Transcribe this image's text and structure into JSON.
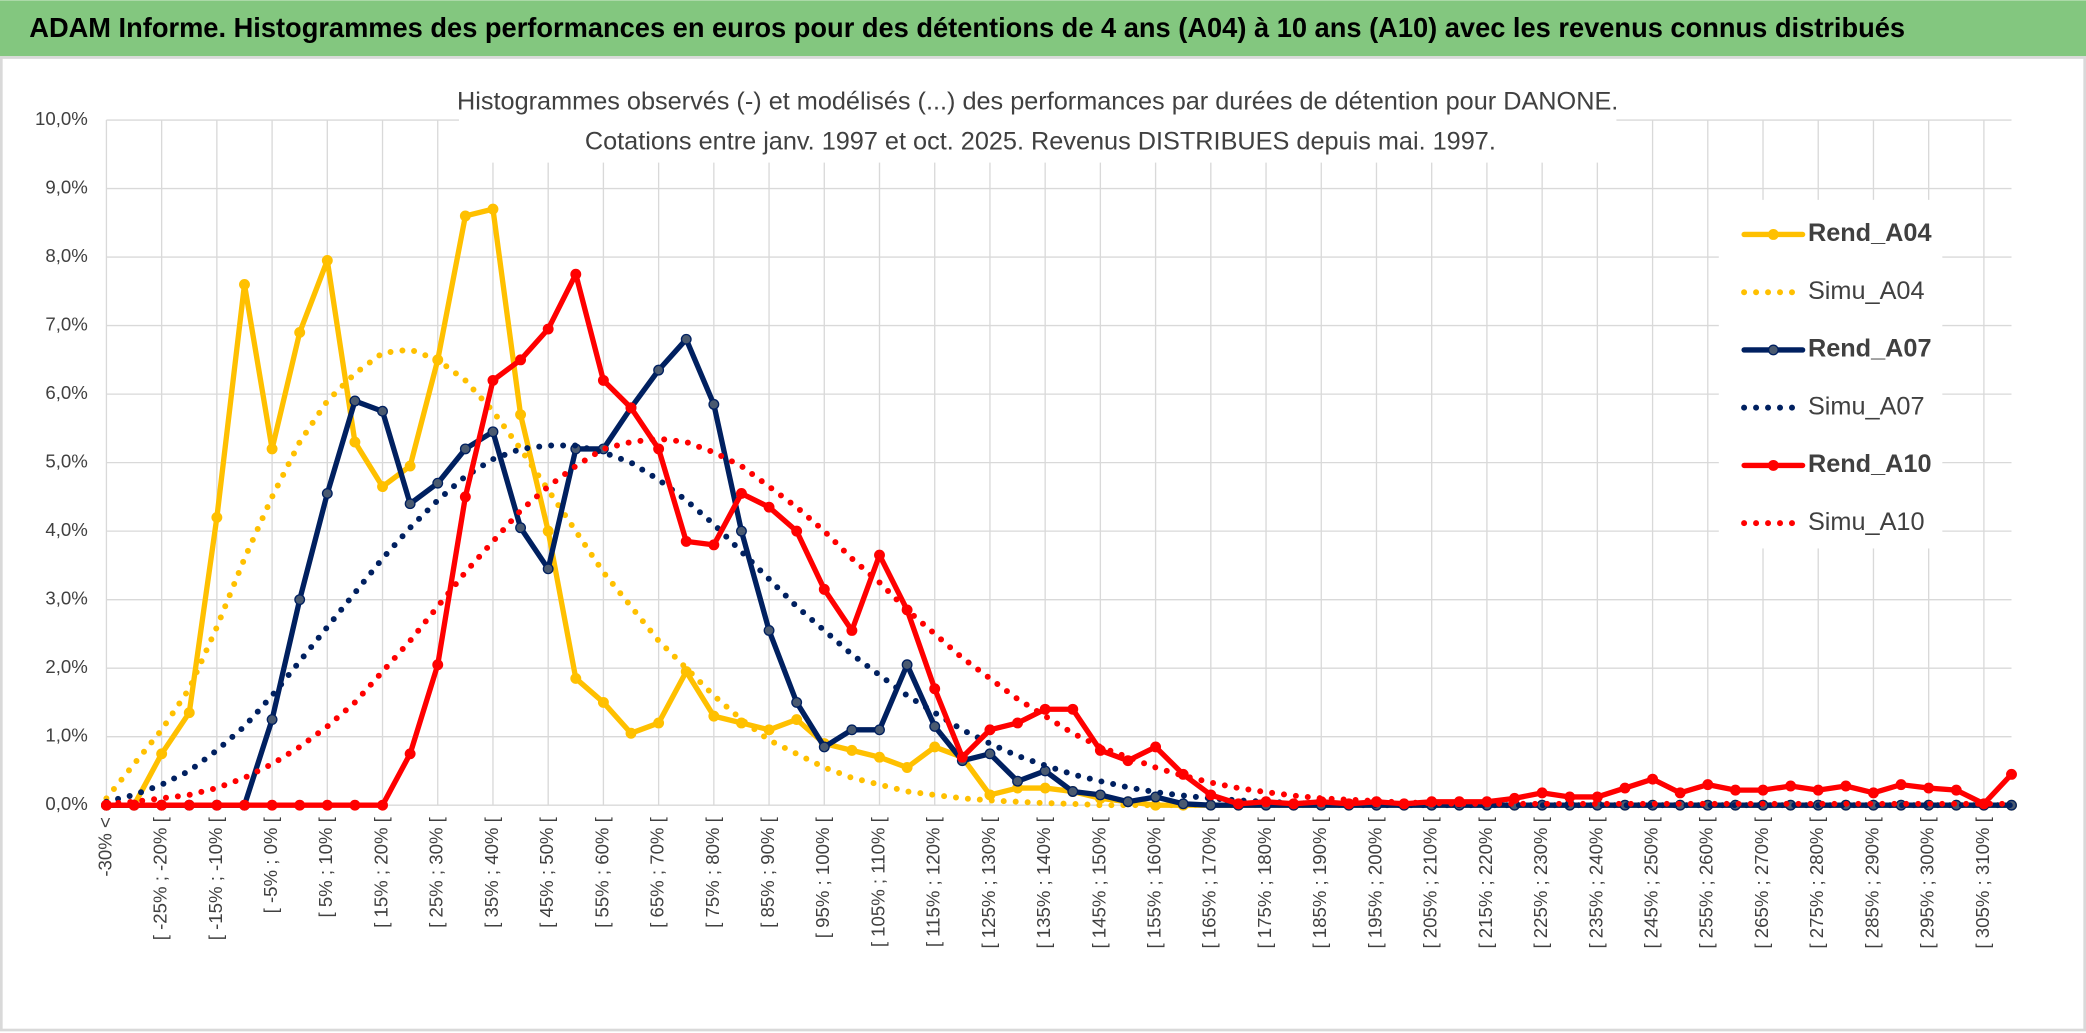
{
  "header": {
    "title": "ADAM Informe. Histogrammes des performances en euros pour des détentions de 4 ans (A04) à 10 ans (A10) avec les revenus connus distribués"
  },
  "chart_data": {
    "type": "line",
    "title": "Histogrammes observés (-) et modélisés (...) des performances par durées de détention pour DANONE.",
    "subtitle": "Cotations entre janv. 1997 et oct. 2025. Revenus DISTRIBUES depuis mai. 1997.",
    "categories": [
      "-30% <",
      null,
      "[ -25% ; -20% [",
      null,
      "[ -15% ; -10% [",
      null,
      "[ -5% ; 0% [",
      null,
      "[ 5% ; 10% [",
      null,
      "[ 15% ; 20% [",
      null,
      "[ 25% ; 30% [",
      null,
      "[ 35% ; 40% [",
      null,
      "[ 45% ; 50% [",
      null,
      "[ 55% ; 60% [",
      null,
      "[ 65% ; 70% [",
      null,
      "[ 75% ; 80% [",
      null,
      "[ 85% ; 90% [",
      null,
      "[ 95% ; 100% [",
      null,
      "[ 105% ; 110% [",
      null,
      "[ 115% ; 120% [",
      null,
      "[ 125% ; 130% [",
      null,
      "[ 135% ; 140% [",
      null,
      "[ 145% ; 150% [",
      null,
      "[ 155% ; 160% [",
      null,
      "[ 165% ; 170% [",
      null,
      "[ 175% ; 180% [",
      null,
      "[ 185% ; 190% [",
      null,
      "[ 195% ; 200% [",
      null,
      "[ 205% ; 210% [",
      null,
      "[ 215% ; 220% [",
      null,
      "[ 225% ; 230% [",
      null,
      "[ 235% ; 240% [",
      null,
      "[ 245% ; 250% [",
      null,
      "[ 255% ; 260% [",
      null,
      "[ 265% ; 270% [",
      null,
      "[ 275% ; 280% [",
      null,
      "[ 285% ; 290% [",
      null,
      "[ 295% ; 300% [",
      null,
      "[ 305% ; 310% [",
      null
    ],
    "series": [
      {
        "name": "Rend_A04",
        "color": "#ffc000",
        "marker_color": "#ffc000",
        "line_style": "solid",
        "values": [
          0,
          0,
          0.75,
          1.35,
          4.2,
          7.6,
          5.2,
          6.9,
          7.95,
          5.3,
          4.65,
          4.95,
          6.5,
          8.6,
          8.7,
          5.7,
          4.0,
          1.85,
          1.5,
          1.05,
          1.2,
          1.95,
          1.3,
          1.2,
          1.1,
          1.25,
          0.9,
          0.8,
          0.7,
          0.55,
          0.85,
          0.7,
          0.15,
          0.25,
          0.25,
          0.2,
          0.1,
          0.05,
          0,
          0,
          0,
          0,
          0,
          0,
          0,
          0,
          0,
          0,
          0,
          0,
          0,
          0,
          0,
          0,
          0,
          0,
          0,
          0,
          0,
          0,
          0,
          0,
          0,
          0,
          0,
          0,
          0,
          0,
          0,
          0
        ]
      },
      {
        "name": "Simu_A04",
        "color": "#ffc000",
        "line_style": "dotted",
        "values": [
          0.1,
          0.6,
          1.1,
          1.7,
          2.6,
          3.6,
          4.5,
          5.3,
          5.9,
          6.3,
          6.6,
          6.65,
          6.5,
          6.2,
          5.75,
          5.2,
          4.6,
          4.0,
          3.4,
          2.9,
          2.4,
          2.0,
          1.6,
          1.25,
          0.95,
          0.75,
          0.55,
          0.4,
          0.3,
          0.2,
          0.15,
          0.1,
          0.07,
          0.05,
          0.03,
          0.02,
          0,
          0,
          0,
          0,
          0,
          0,
          0,
          0,
          0,
          0,
          0,
          0,
          0,
          0,
          0,
          0,
          0,
          0,
          0,
          0,
          0,
          0,
          0,
          0,
          0,
          0,
          0,
          0,
          0,
          0,
          0,
          0,
          0,
          0
        ]
      },
      {
        "name": "Rend_A07",
        "color": "#002060",
        "marker_color": "#4a5a70",
        "line_style": "solid",
        "values": [
          0,
          0,
          0,
          0,
          0,
          0,
          1.25,
          3.0,
          4.55,
          5.9,
          5.75,
          4.4,
          4.7,
          5.2,
          5.45,
          4.05,
          3.45,
          5.2,
          5.2,
          5.8,
          6.35,
          6.8,
          5.85,
          4.0,
          2.55,
          1.5,
          0.85,
          1.1,
          1.1,
          2.05,
          1.15,
          0.65,
          0.75,
          0.35,
          0.5,
          0.2,
          0.15,
          0.05,
          0.12,
          0.02,
          0,
          0,
          0,
          0,
          0,
          0,
          0,
          0,
          0,
          0,
          0,
          0,
          0,
          0,
          0,
          0,
          0,
          0,
          0,
          0,
          0,
          0,
          0,
          0,
          0,
          0,
          0,
          0,
          0,
          0
        ]
      },
      {
        "name": "Simu_A07",
        "color": "#002060",
        "line_style": "dotted",
        "values": [
          0.05,
          0.15,
          0.3,
          0.5,
          0.8,
          1.15,
          1.6,
          2.1,
          2.6,
          3.1,
          3.6,
          4.05,
          4.45,
          4.8,
          5.05,
          5.2,
          5.25,
          5.25,
          5.15,
          5.0,
          4.75,
          4.45,
          4.1,
          3.7,
          3.3,
          2.9,
          2.55,
          2.2,
          1.9,
          1.6,
          1.35,
          1.1,
          0.9,
          0.72,
          0.58,
          0.45,
          0.35,
          0.26,
          0.19,
          0.14,
          0.1,
          0.07,
          0.05,
          0.03,
          0.02,
          0,
          0,
          0,
          0,
          0,
          0,
          0,
          0,
          0,
          0,
          0,
          0,
          0,
          0,
          0,
          0,
          0,
          0,
          0,
          0,
          0,
          0,
          0,
          0,
          0
        ]
      },
      {
        "name": "Rend_A10",
        "color": "#ff0000",
        "marker_color": "#ff0000",
        "line_style": "solid",
        "values": [
          0,
          0,
          0,
          0,
          0,
          0,
          0,
          0,
          0,
          0,
          0,
          0.75,
          2.05,
          4.5,
          6.2,
          6.5,
          6.95,
          7.75,
          6.2,
          5.8,
          5.2,
          3.85,
          3.8,
          4.55,
          4.35,
          4.0,
          3.15,
          2.55,
          3.65,
          2.85,
          1.7,
          0.7,
          1.1,
          1.2,
          1.4,
          1.4,
          0.8,
          0.65,
          0.85,
          0.45,
          0.15,
          0.02,
          0.05,
          0.02,
          0.05,
          0.02,
          0.05,
          0.02,
          0.05,
          0.05,
          0.05,
          0.1,
          0.18,
          0.12,
          0.12,
          0.25,
          0.38,
          0.18,
          0.3,
          0.22,
          0.22,
          0.28,
          0.22,
          0.28,
          0.18,
          0.3,
          0.25,
          0.22,
          0.02,
          0.45
        ]
      },
      {
        "name": "Simu_A10",
        "color": "#ff0000",
        "line_style": "dotted",
        "values": [
          0.02,
          0.05,
          0.1,
          0.15,
          0.25,
          0.4,
          0.6,
          0.85,
          1.15,
          1.5,
          1.95,
          2.4,
          2.9,
          3.4,
          3.85,
          4.3,
          4.65,
          4.95,
          5.2,
          5.3,
          5.35,
          5.3,
          5.15,
          4.95,
          4.65,
          4.35,
          4.0,
          3.6,
          3.25,
          2.85,
          2.5,
          2.15,
          1.85,
          1.55,
          1.3,
          1.05,
          0.85,
          0.7,
          0.55,
          0.43,
          0.33,
          0.25,
          0.19,
          0.14,
          0.1,
          0.08,
          0.06,
          0.04,
          0.03,
          0.02,
          0.02,
          0.02,
          0.02,
          0.02,
          0.02,
          0.02,
          0.02,
          0.02,
          0.02,
          0.02,
          0.02,
          0.02,
          0.02,
          0.02,
          0.02,
          0.02,
          0.02,
          0.02,
          0.02,
          0.02
        ]
      }
    ],
    "ylim": [
      0,
      10
    ],
    "yticks": [
      {
        "value": 0,
        "label": "0,0%"
      },
      {
        "value": 1,
        "label": "1,0%"
      },
      {
        "value": 2,
        "label": "2,0%"
      },
      {
        "value": 3,
        "label": "3,0%"
      },
      {
        "value": 4,
        "label": "4,0%"
      },
      {
        "value": 5,
        "label": "5,0%"
      },
      {
        "value": 6,
        "label": "6,0%"
      },
      {
        "value": 7,
        "label": "7,0%"
      },
      {
        "value": 8,
        "label": "8,0%"
      },
      {
        "value": 9,
        "label": "9,0%"
      },
      {
        "value": 10,
        "label": "10,0%"
      }
    ],
    "grid": true,
    "legend": "right"
  }
}
